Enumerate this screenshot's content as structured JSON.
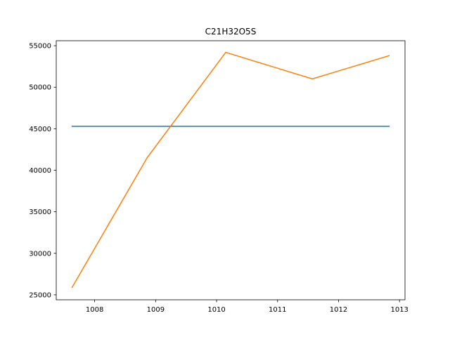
{
  "chart_data": {
    "type": "line",
    "title": "C21H32O5S",
    "xlabel": "",
    "ylabel": "",
    "xlim": [
      1007.37,
      1013.09
    ],
    "ylim": [
      24400,
      55600
    ],
    "x_ticks": [
      1008,
      1009,
      1010,
      1011,
      1012,
      1013
    ],
    "y_ticks": [
      25000,
      30000,
      35000,
      40000,
      45000,
      50000,
      55000
    ],
    "grid": false,
    "legend": "none",
    "series": [
      {
        "color": "#1f77b4",
        "x": [
          1007.63,
          1012.83
        ],
        "y": [
          45300,
          45300
        ]
      },
      {
        "color": "#ff7f0e",
        "x": [
          1007.63,
          1008.86,
          1010.15,
          1011.57,
          1012.83
        ],
        "y": [
          25900,
          41500,
          54200,
          51000,
          53800
        ]
      }
    ]
  }
}
